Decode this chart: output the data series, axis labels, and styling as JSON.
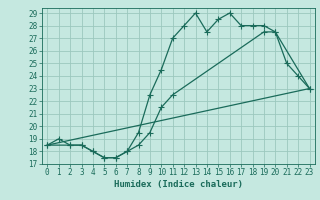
{
  "bg_color": "#c5e8e0",
  "grid_color": "#9cc8be",
  "line_color": "#1a6b5a",
  "xlabel": "Humidex (Indice chaleur)",
  "xlim": [
    -0.5,
    23.5
  ],
  "ylim": [
    17,
    29.4
  ],
  "yticks": [
    17,
    18,
    19,
    20,
    21,
    22,
    23,
    24,
    25,
    26,
    27,
    28,
    29
  ],
  "xticks": [
    0,
    1,
    2,
    3,
    4,
    5,
    6,
    7,
    8,
    9,
    10,
    11,
    12,
    13,
    14,
    15,
    16,
    17,
    18,
    19,
    20,
    21,
    22,
    23
  ],
  "line1_x": [
    0,
    1,
    2,
    3,
    4,
    5,
    6,
    7,
    8,
    9,
    10,
    11,
    12,
    13,
    14,
    15,
    16,
    17,
    18,
    19,
    20,
    21,
    22,
    23
  ],
  "line1_y": [
    18.5,
    19.0,
    18.5,
    18.5,
    18.0,
    17.5,
    17.5,
    18.0,
    19.5,
    22.5,
    24.5,
    27.0,
    28.0,
    29.0,
    27.5,
    28.5,
    29.0,
    28.0,
    28.0,
    28.0,
    27.5,
    25.0,
    24.0,
    23.0
  ],
  "line2_x": [
    0,
    2,
    3,
    4,
    5,
    6,
    7,
    8,
    9,
    10,
    11,
    19,
    20,
    23
  ],
  "line2_y": [
    18.5,
    18.5,
    18.5,
    18.0,
    17.5,
    17.5,
    18.0,
    18.5,
    19.5,
    21.5,
    22.5,
    27.5,
    27.5,
    23.0
  ],
  "line3_x": [
    0,
    23
  ],
  "line3_y": [
    18.5,
    23.0
  ],
  "marker": "+",
  "markersize": 4,
  "linewidth": 0.9,
  "xlabel_fontsize": 6.5,
  "tick_fontsize": 5.5
}
